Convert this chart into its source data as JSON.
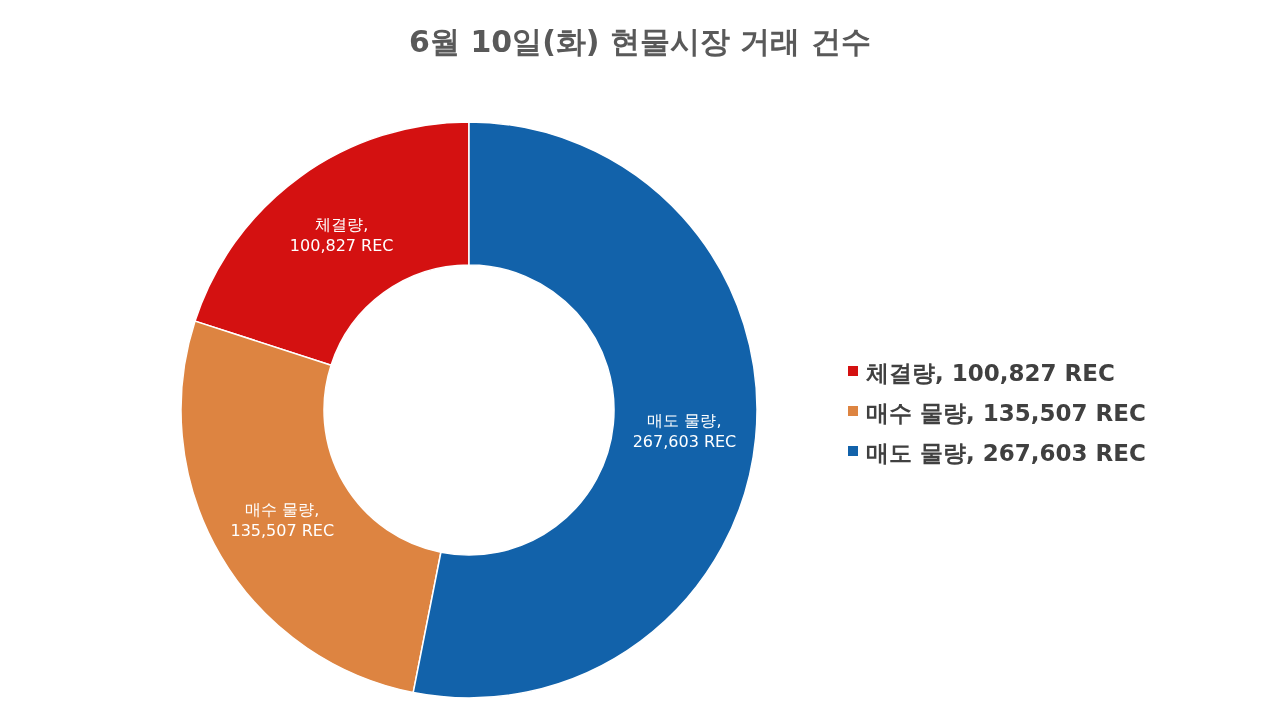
{
  "chart_data": {
    "type": "donut",
    "title": "6월 10일(화) 현물시장 거래 건수",
    "categories": [
      "체결량, 100,827 REC",
      "매수 물량, 135,507 REC",
      "매도 물량, 267,603 REC"
    ],
    "values": [
      100827,
      135507,
      267603
    ],
    "colors": [
      "#d41111",
      "#dd8441",
      "#1262aa"
    ],
    "legend": "right"
  }
}
